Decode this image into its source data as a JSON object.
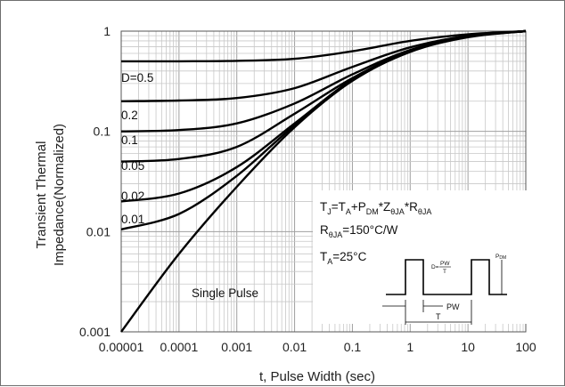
{
  "chart_data": {
    "type": "line",
    "title": "",
    "xlabel": "t, Pulse Width (sec)",
    "ylabel_lines": [
      "Transient Thermal",
      "Impedance(Normalized)"
    ],
    "x_scale": "log",
    "y_scale": "log",
    "xlim": [
      1e-05,
      100
    ],
    "ylim": [
      0.001,
      1
    ],
    "grid": true,
    "x_tick_labels": [
      "0.00001",
      "0.0001",
      "0.001",
      "0.01",
      "0.1",
      "1",
      "10",
      "100"
    ],
    "y_tick_labels": [
      "0.001",
      "0.01",
      "0.1",
      "1"
    ],
    "series": [
      {
        "name": "D=0.5",
        "x": [
          1e-05,
          0.0001,
          0.001,
          0.01,
          0.1,
          1,
          10,
          100
        ],
        "y": [
          0.5,
          0.5,
          0.505,
          0.53,
          0.63,
          0.8,
          0.93,
          1.0
        ]
      },
      {
        "name": "0.2",
        "x": [
          1e-05,
          0.0001,
          0.001,
          0.01,
          0.1,
          1,
          10,
          100
        ],
        "y": [
          0.2,
          0.203,
          0.215,
          0.27,
          0.44,
          0.69,
          0.9,
          1.0
        ]
      },
      {
        "name": "0.1",
        "x": [
          1e-05,
          0.0001,
          0.001,
          0.01,
          0.1,
          1,
          10,
          100
        ],
        "y": [
          0.1,
          0.103,
          0.12,
          0.19,
          0.37,
          0.65,
          0.89,
          1.0
        ]
      },
      {
        "name": "0.05",
        "x": [
          1e-05,
          0.0001,
          0.001,
          0.01,
          0.1,
          1,
          10,
          100
        ],
        "y": [
          0.05,
          0.053,
          0.07,
          0.15,
          0.34,
          0.64,
          0.88,
          1.0
        ]
      },
      {
        "name": "0.02",
        "x": [
          1e-05,
          0.0001,
          0.001,
          0.01,
          0.1,
          1,
          10,
          100
        ],
        "y": [
          0.02,
          0.024,
          0.044,
          0.12,
          0.33,
          0.63,
          0.88,
          1.0
        ]
      },
      {
        "name": "0.01",
        "x": [
          1e-05,
          0.0001,
          0.001,
          0.01,
          0.1,
          1,
          10,
          100
        ],
        "y": [
          0.0105,
          0.015,
          0.036,
          0.115,
          0.32,
          0.63,
          0.88,
          1.0
        ]
      },
      {
        "name": "Single Pulse",
        "x": [
          1e-05,
          0.0001,
          0.001,
          0.01,
          0.1,
          1,
          10,
          100
        ],
        "y": [
          0.001,
          0.006,
          0.028,
          0.11,
          0.32,
          0.62,
          0.87,
          1.0
        ]
      }
    ],
    "annotations": {
      "eq1": {
        "t1": "T",
        "s1": "J",
        "t2": "=T",
        "s2": "A",
        "t3": "+P",
        "s3": "DM",
        "t4": "*Z",
        "s4": "θJA",
        "t5": "*R",
        "s5": "θJA"
      },
      "eq2": {
        "t1": "R",
        "s1": "θJA",
        "t2": "=150°C/W"
      },
      "eq3": {
        "t1": "T",
        "s1": "A",
        "t2": "=25°C"
      },
      "waveform": {
        "duty": "D=",
        "pw_num": "PW",
        "t_den": "T",
        "pdm": "P",
        "pdm_sub": "DM",
        "pw_label": "PW",
        "t_label": "T"
      }
    },
    "line_color": "#000000",
    "grid_color": "#c8c8c8"
  }
}
